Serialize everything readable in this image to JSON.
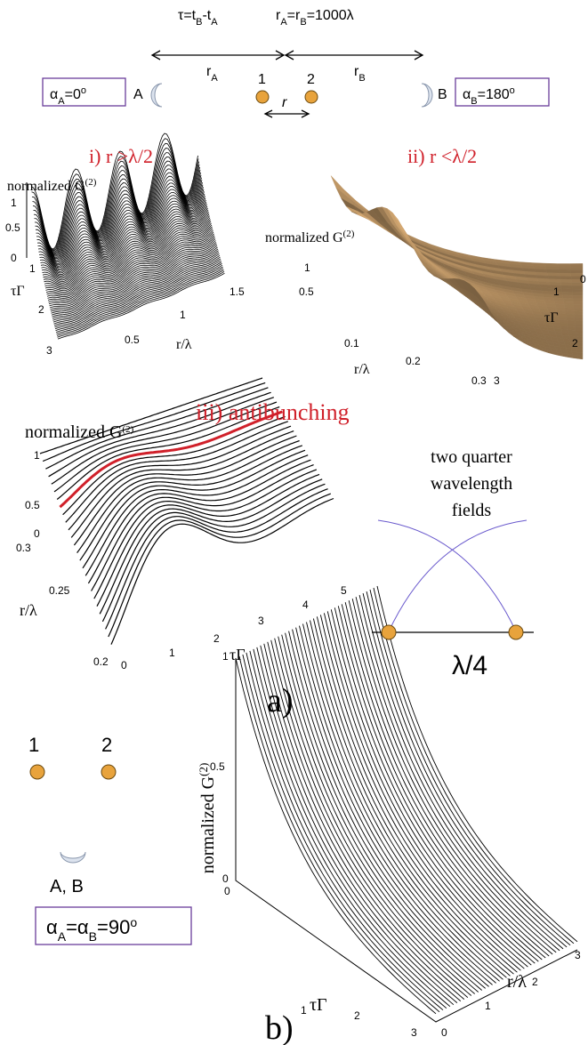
{
  "top": {
    "tau": [
      "τ=t",
      "B",
      "-t",
      "A"
    ],
    "r_equal": [
      "r",
      "A",
      "=r",
      "B",
      "=1000λ"
    ],
    "rA": [
      "r",
      "A"
    ],
    "rB": [
      "r",
      "B"
    ],
    "alpha_a": [
      "α",
      "A",
      "=0",
      "o"
    ],
    "mirror_a": "A",
    "alpha_b": [
      "α",
      "B",
      "=180",
      "o"
    ],
    "mirror_b": "B",
    "atom1": "1",
    "atom2": "2",
    "r": "r"
  },
  "panel_i": {
    "title": "i) r >λ/2",
    "zlabel": [
      "normalized G",
      "(2)"
    ],
    "zticks": [
      "0",
      "0.5",
      "1"
    ],
    "tticks": [
      "1",
      "2",
      "3"
    ],
    "tlabel": "τΓ",
    "rticks": [
      "0.5",
      "1",
      "1.5"
    ],
    "rlabel": "r/λ"
  },
  "panel_ii": {
    "title": "ii) r <λ/2",
    "zlabel": [
      "normalized G",
      "(2)"
    ],
    "zticks": [
      "0.5",
      "1"
    ],
    "rticks": [
      "0.1",
      "0.2",
      "0.3"
    ],
    "rlabel": "r/λ",
    "tticks": [
      "0",
      "1",
      "2",
      "3"
    ],
    "tlabel": "τΓ"
  },
  "panel_iii": {
    "title": "iii) antibunching",
    "zlabel": [
      "normalized G",
      "(2)"
    ],
    "zticks": [
      "0",
      "0.5",
      "1"
    ],
    "rticks": [
      "0.3",
      "0.25",
      "0.2"
    ],
    "rlabel": "r/λ",
    "tticks": [
      "0",
      "1",
      "2",
      "3",
      "4",
      "5"
    ],
    "tlabel": "τΓ"
  },
  "inset": {
    "lines": [
      "two quarter",
      "wavelength",
      "fields"
    ],
    "spacing": "λ/4"
  },
  "label_a": "a)",
  "panel_b": {
    "atom1": "1",
    "atom2": "2",
    "mirror": "A, B",
    "alpha": [
      "α",
      "A",
      "=α",
      "B",
      "=90",
      "o"
    ],
    "zlabel": [
      "normalized G",
      "(2)"
    ],
    "zticks": [
      "0",
      "0.5",
      "1"
    ],
    "corner": "0",
    "tticks": [
      "1",
      "2",
      "3"
    ],
    "tlabel": "τΓ",
    "rticks": [
      "0",
      "1",
      "2",
      "3"
    ],
    "rlabel": "r/λ"
  },
  "label_b": "b)"
}
